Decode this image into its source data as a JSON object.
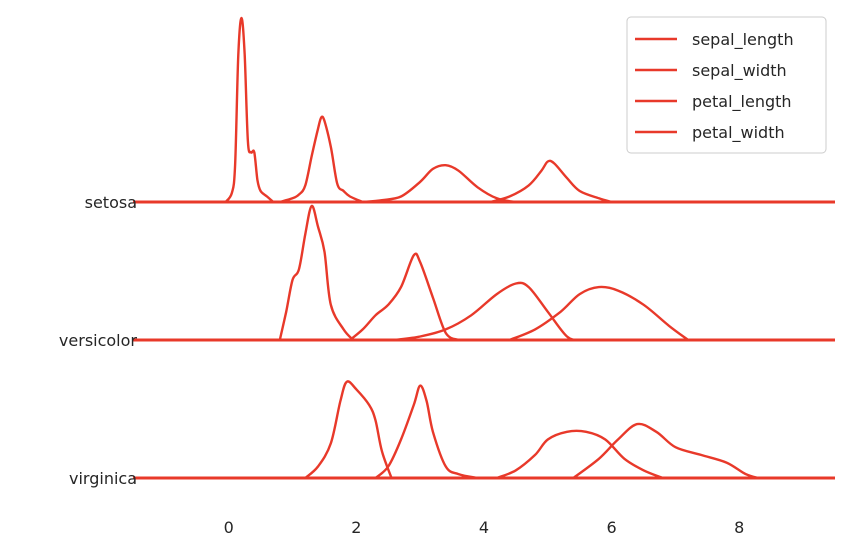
{
  "chart_data": {
    "type": "line",
    "subtype": "ridgeline-kde",
    "title": "",
    "xlabel": "",
    "ylabel": "",
    "xlim": [
      -1.5,
      9.5
    ],
    "x_ticks": [
      0,
      2,
      4,
      6,
      8
    ],
    "x_tick_labels": [
      "0",
      "2",
      "4",
      "6",
      "8"
    ],
    "grid": false,
    "legend_placement": "top-right",
    "color": "#e8392a",
    "legend": [
      "sepal_length",
      "sepal_width",
      "petal_length",
      "petal_width"
    ],
    "groups": [
      {
        "label": "setosa",
        "series": [
          {
            "name": "sepal_length",
            "points": [
              [
                4.1,
                0
              ],
              [
                4.4,
                0.03
              ],
              [
                4.7,
                0.09
              ],
              [
                4.9,
                0.17
              ],
              [
                5.0,
                0.22
              ],
              [
                5.1,
                0.21
              ],
              [
                5.3,
                0.13
              ],
              [
                5.5,
                0.06
              ],
              [
                5.8,
                0.02
              ],
              [
                6.0,
                0
              ]
            ]
          },
          {
            "name": "sepal_width",
            "points": [
              [
                2.1,
                0
              ],
              [
                2.4,
                0.01
              ],
              [
                2.7,
                0.03
              ],
              [
                3.0,
                0.11
              ],
              [
                3.2,
                0.18
              ],
              [
                3.4,
                0.2
              ],
              [
                3.6,
                0.17
              ],
              [
                3.9,
                0.08
              ],
              [
                4.2,
                0.02
              ],
              [
                4.5,
                0
              ]
            ]
          },
          {
            "name": "petal_length",
            "points": [
              [
                0.8,
                0
              ],
              [
                1.0,
                0.02
              ],
              [
                1.1,
                0.04
              ],
              [
                1.2,
                0.09
              ],
              [
                1.3,
                0.25
              ],
              [
                1.4,
                0.4
              ],
              [
                1.45,
                0.46
              ],
              [
                1.5,
                0.44
              ],
              [
                1.6,
                0.3
              ],
              [
                1.7,
                0.1
              ],
              [
                1.8,
                0.06
              ],
              [
                1.9,
                0.03
              ],
              [
                2.1,
                0
              ]
            ]
          },
          {
            "name": "petal_width",
            "points": [
              [
                -0.05,
                0
              ],
              [
                0.05,
                0.05
              ],
              [
                0.1,
                0.2
              ],
              [
                0.15,
                0.8
              ],
              [
                0.2,
                1.0
              ],
              [
                0.25,
                0.8
              ],
              [
                0.3,
                0.33
              ],
              [
                0.35,
                0.27
              ],
              [
                0.4,
                0.27
              ],
              [
                0.45,
                0.12
              ],
              [
                0.5,
                0.06
              ],
              [
                0.6,
                0.03
              ],
              [
                0.7,
                0
              ]
            ]
          }
        ]
      },
      {
        "label": "versicolor",
        "series": [
          {
            "name": "sepal_length",
            "points": [
              [
                4.4,
                0
              ],
              [
                4.8,
                0.03
              ],
              [
                5.2,
                0.08
              ],
              [
                5.5,
                0.13
              ],
              [
                5.8,
                0.15
              ],
              [
                6.1,
                0.14
              ],
              [
                6.5,
                0.1
              ],
              [
                6.9,
                0.04
              ],
              [
                7.2,
                0
              ]
            ]
          },
          {
            "name": "sepal_width",
            "points": [
              [
                1.9,
                0
              ],
              [
                2.1,
                0.03
              ],
              [
                2.3,
                0.07
              ],
              [
                2.5,
                0.1
              ],
              [
                2.7,
                0.15
              ],
              [
                2.9,
                0.24
              ],
              [
                3.0,
                0.22
              ],
              [
                3.2,
                0.12
              ],
              [
                3.4,
                0.02
              ],
              [
                3.6,
                0
              ]
            ]
          },
          {
            "name": "petal_length",
            "points": [
              [
                2.6,
                0
              ],
              [
                3.0,
                0.01
              ],
              [
                3.4,
                0.03
              ],
              [
                3.8,
                0.07
              ],
              [
                4.2,
                0.13
              ],
              [
                4.5,
                0.16
              ],
              [
                4.7,
                0.15
              ],
              [
                5.0,
                0.08
              ],
              [
                5.3,
                0.01
              ],
              [
                5.5,
                0
              ]
            ]
          },
          {
            "name": "petal_width",
            "points": [
              [
                0.8,
                0
              ],
              [
                0.9,
                0.08
              ],
              [
                1.0,
                0.17
              ],
              [
                1.1,
                0.2
              ],
              [
                1.2,
                0.3
              ],
              [
                1.3,
                0.38
              ],
              [
                1.4,
                0.32
              ],
              [
                1.5,
                0.25
              ],
              [
                1.6,
                0.1
              ],
              [
                1.8,
                0.03
              ],
              [
                1.95,
                0
              ]
            ]
          }
        ]
      },
      {
        "label": "virginica",
        "series": [
          {
            "name": "sepal_length",
            "points": [
              [
                5.4,
                0
              ],
              [
                5.8,
                0.05
              ],
              [
                6.1,
                0.1
              ],
              [
                6.4,
                0.14
              ],
              [
                6.7,
                0.12
              ],
              [
                7.0,
                0.08
              ],
              [
                7.4,
                0.06
              ],
              [
                7.8,
                0.04
              ],
              [
                8.1,
                0.01
              ],
              [
                8.3,
                0
              ]
            ]
          },
          {
            "name": "sepal_width",
            "points": [
              [
                2.3,
                0
              ],
              [
                2.5,
                0.03
              ],
              [
                2.7,
                0.1
              ],
              [
                2.9,
                0.19
              ],
              [
                3.0,
                0.24
              ],
              [
                3.1,
                0.2
              ],
              [
                3.2,
                0.12
              ],
              [
                3.4,
                0.03
              ],
              [
                3.6,
                0.01
              ],
              [
                3.9,
                0
              ]
            ]
          },
          {
            "name": "petal_length",
            "points": [
              [
                4.2,
                0
              ],
              [
                4.5,
                0.02
              ],
              [
                4.8,
                0.06
              ],
              [
                5.0,
                0.1
              ],
              [
                5.3,
                0.12
              ],
              [
                5.6,
                0.12
              ],
              [
                5.9,
                0.1
              ],
              [
                6.2,
                0.05
              ],
              [
                6.5,
                0.02
              ],
              [
                6.8,
                0
              ]
            ]
          },
          {
            "name": "petal_width",
            "points": [
              [
                1.2,
                0
              ],
              [
                1.4,
                0.03
              ],
              [
                1.6,
                0.09
              ],
              [
                1.75,
                0.2
              ],
              [
                1.85,
                0.25
              ],
              [
                2.0,
                0.23
              ],
              [
                2.2,
                0.19
              ],
              [
                2.3,
                0.15
              ],
              [
                2.4,
                0.07
              ],
              [
                2.55,
                0
              ]
            ]
          }
        ]
      }
    ]
  }
}
